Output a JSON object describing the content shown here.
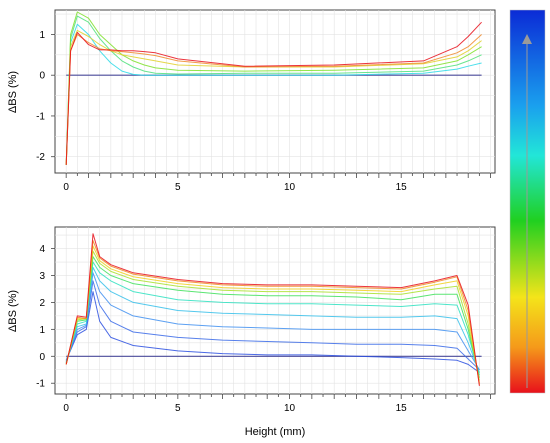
{
  "colors": {
    "colorbar_top": "#0b2bd6",
    "colorbar_bottom": "#e8101b",
    "baseline": "#4a4a9a"
  },
  "chart_data": [
    {
      "type": "line",
      "ylabel": "ΔBS (%)",
      "xlabel": "",
      "xlim": [
        -0.5,
        19.2
      ],
      "ylim": [
        -2.4,
        1.6
      ],
      "xticks": [
        0,
        5,
        10,
        15
      ],
      "yticks": [
        1,
        0,
        -1,
        -2
      ],
      "grid": true,
      "legend": "none",
      "series": [
        {
          "color": "#0000cd",
          "x": [
            0,
            18.6
          ],
          "y": [
            0,
            0
          ]
        },
        {
          "color": "#2bd9e8",
          "x": [
            0,
            0.2,
            0.5,
            1.0,
            1.5,
            2.0,
            2.5,
            3.0,
            3.5,
            4.0,
            5.0,
            8.0,
            12.0,
            16.0,
            17.5,
            18.0,
            18.6
          ],
          "y": [
            -2.2,
            0.8,
            1.25,
            1.0,
            0.6,
            0.3,
            0.1,
            0.02,
            0.0,
            0.0,
            0.0,
            0.0,
            0.0,
            0.05,
            0.15,
            0.22,
            0.3
          ]
        },
        {
          "color": "#4fe07a",
          "x": [
            0,
            0.2,
            0.5,
            1.0,
            1.5,
            2.0,
            2.5,
            3.0,
            3.5,
            4.0,
            5.0,
            8.0,
            12.0,
            16.0,
            17.5,
            18.0,
            18.6
          ],
          "y": [
            -2.2,
            0.9,
            1.45,
            1.3,
            0.9,
            0.6,
            0.35,
            0.2,
            0.1,
            0.05,
            0.03,
            0.05,
            0.05,
            0.1,
            0.25,
            0.35,
            0.5
          ]
        },
        {
          "color": "#7fe02a",
          "x": [
            0,
            0.2,
            0.5,
            1.0,
            1.5,
            2.0,
            2.5,
            3.0,
            3.5,
            4.0,
            5.0,
            8.0,
            12.0,
            16.0,
            17.5,
            18.0,
            18.6
          ],
          "y": [
            -2.2,
            1.0,
            1.55,
            1.4,
            1.0,
            0.75,
            0.5,
            0.35,
            0.25,
            0.18,
            0.12,
            0.1,
            0.12,
            0.18,
            0.35,
            0.5,
            0.7
          ]
        },
        {
          "color": "#e0d02a",
          "x": [
            0,
            0.2,
            0.5,
            1.0,
            1.5,
            2.0,
            2.5,
            3.0,
            3.5,
            4.0,
            5.0,
            8.0,
            12.0,
            16.0,
            17.5,
            18.0,
            18.6
          ],
          "y": [
            -2.2,
            0.7,
            1.1,
            0.95,
            0.75,
            0.6,
            0.5,
            0.45,
            0.4,
            0.35,
            0.25,
            0.2,
            0.2,
            0.28,
            0.45,
            0.6,
            0.85
          ]
        },
        {
          "color": "#f08a2a",
          "x": [
            0,
            0.2,
            0.5,
            1.0,
            1.5,
            2.0,
            2.5,
            3.0,
            3.5,
            4.0,
            5.0,
            8.0,
            12.0,
            16.0,
            17.5,
            18.0,
            18.6
          ],
          "y": [
            -2.2,
            0.6,
            1.0,
            0.8,
            0.65,
            0.6,
            0.58,
            0.55,
            0.52,
            0.48,
            0.35,
            0.2,
            0.22,
            0.3,
            0.55,
            0.7,
            1.0
          ]
        },
        {
          "color": "#e8101b",
          "x": [
            0,
            0.2,
            0.5,
            1.0,
            1.5,
            2.0,
            2.5,
            3.0,
            3.5,
            4.0,
            5.0,
            8.0,
            12.0,
            16.0,
            17.5,
            18.0,
            18.6
          ],
          "y": [
            -2.2,
            0.6,
            1.05,
            0.75,
            0.62,
            0.62,
            0.6,
            0.6,
            0.58,
            0.55,
            0.4,
            0.22,
            0.25,
            0.35,
            0.7,
            0.95,
            1.3
          ]
        }
      ]
    },
    {
      "type": "line",
      "ylabel": "ΔBS (%)",
      "xlabel": "Height (mm)",
      "xlim": [
        -0.5,
        19.2
      ],
      "ylim": [
        -1.4,
        4.8
      ],
      "xticks": [
        0,
        5,
        10,
        15
      ],
      "yticks": [
        4,
        3,
        2,
        1,
        0,
        -1
      ],
      "grid": true,
      "legend": "none",
      "series": [
        {
          "color": "#0000cd",
          "x": [
            0,
            18.6
          ],
          "y": [
            0,
            0
          ]
        },
        {
          "color": "#2a4fe0",
          "x": [
            0,
            0.5,
            0.9,
            1.2,
            1.5,
            2.0,
            3.0,
            5.0,
            7.0,
            9.0,
            11.0,
            13.0,
            15.0,
            16.5,
            17.5,
            18.0,
            18.5
          ],
          "y": [
            -0.15,
            0.8,
            1.0,
            2.4,
            1.3,
            0.7,
            0.4,
            0.2,
            0.1,
            0.05,
            0.05,
            0.0,
            -0.05,
            -0.1,
            -0.15,
            -0.3,
            -0.6
          ]
        },
        {
          "color": "#3a6ae8",
          "x": [
            0,
            0.5,
            0.9,
            1.2,
            1.5,
            2.0,
            3.0,
            5.0,
            7.0,
            9.0,
            11.0,
            13.0,
            15.0,
            16.5,
            17.5,
            18.0,
            18.5
          ],
          "y": [
            -0.15,
            0.9,
            1.1,
            2.8,
            1.9,
            1.3,
            0.9,
            0.7,
            0.6,
            0.55,
            0.5,
            0.45,
            0.45,
            0.4,
            0.3,
            -0.1,
            -0.5
          ]
        },
        {
          "color": "#3f8ff0",
          "x": [
            0,
            0.5,
            0.9,
            1.2,
            1.5,
            2.0,
            3.0,
            5.0,
            7.0,
            9.0,
            11.0,
            13.0,
            15.0,
            16.5,
            17.5,
            18.0,
            18.5
          ],
          "y": [
            -0.2,
            1.0,
            1.15,
            3.1,
            2.4,
            1.9,
            1.5,
            1.2,
            1.1,
            1.05,
            1.0,
            1.0,
            1.0,
            1.0,
            0.9,
            0.2,
            -0.5
          ]
        },
        {
          "color": "#36c0ea",
          "x": [
            0,
            0.5,
            0.9,
            1.2,
            1.5,
            2.0,
            3.0,
            5.0,
            7.0,
            9.0,
            11.0,
            13.0,
            15.0,
            16.5,
            17.5,
            18.0,
            18.5
          ],
          "y": [
            -0.2,
            1.1,
            1.2,
            3.3,
            2.8,
            2.4,
            2.0,
            1.7,
            1.6,
            1.55,
            1.5,
            1.45,
            1.45,
            1.5,
            1.4,
            0.5,
            -0.6
          ]
        },
        {
          "color": "#2ee0c0",
          "x": [
            0,
            0.5,
            0.9,
            1.2,
            1.5,
            2.0,
            3.0,
            5.0,
            7.0,
            9.0,
            11.0,
            13.0,
            15.0,
            16.5,
            17.5,
            18.0,
            18.5
          ],
          "y": [
            -0.25,
            1.2,
            1.3,
            3.5,
            3.1,
            2.8,
            2.4,
            2.1,
            2.0,
            1.95,
            1.95,
            1.9,
            1.85,
            1.95,
            1.9,
            0.8,
            -0.7
          ]
        },
        {
          "color": "#3ee05a",
          "x": [
            0,
            0.5,
            0.9,
            1.2,
            1.5,
            2.0,
            3.0,
            5.0,
            7.0,
            9.0,
            11.0,
            13.0,
            15.0,
            16.5,
            17.5,
            18.0,
            18.5
          ],
          "y": [
            -0.25,
            1.3,
            1.35,
            3.7,
            3.3,
            3.0,
            2.7,
            2.45,
            2.3,
            2.25,
            2.25,
            2.2,
            2.1,
            2.3,
            2.3,
            1.0,
            -0.8
          ]
        },
        {
          "color": "#a8e02a",
          "x": [
            0,
            0.5,
            0.9,
            1.2,
            1.5,
            2.0,
            3.0,
            5.0,
            7.0,
            9.0,
            11.0,
            13.0,
            15.0,
            16.5,
            17.5,
            18.0,
            18.5
          ],
          "y": [
            -0.3,
            1.35,
            1.4,
            3.9,
            3.45,
            3.15,
            2.85,
            2.6,
            2.45,
            2.4,
            2.4,
            2.35,
            2.3,
            2.5,
            2.6,
            1.2,
            -0.9
          ]
        },
        {
          "color": "#f0d020",
          "x": [
            0,
            0.5,
            0.9,
            1.2,
            1.5,
            2.0,
            3.0,
            5.0,
            7.0,
            9.0,
            11.0,
            13.0,
            15.0,
            16.5,
            17.5,
            18.0,
            18.5
          ],
          "y": [
            -0.3,
            1.4,
            1.4,
            4.1,
            3.55,
            3.25,
            2.95,
            2.7,
            2.55,
            2.5,
            2.5,
            2.45,
            2.4,
            2.65,
            2.8,
            1.5,
            -1.0
          ]
        },
        {
          "color": "#f08a20",
          "x": [
            0,
            0.5,
            0.9,
            1.2,
            1.5,
            2.0,
            3.0,
            5.0,
            7.0,
            9.0,
            11.0,
            13.0,
            15.0,
            16.5,
            17.5,
            18.0,
            18.5
          ],
          "y": [
            -0.3,
            1.45,
            1.4,
            4.3,
            3.65,
            3.35,
            3.05,
            2.8,
            2.65,
            2.6,
            2.6,
            2.55,
            2.5,
            2.75,
            2.95,
            1.7,
            -1.05
          ]
        },
        {
          "color": "#e8101b",
          "x": [
            0,
            0.5,
            0.9,
            1.2,
            1.5,
            2.0,
            3.0,
            5.0,
            7.0,
            9.0,
            11.0,
            13.0,
            15.0,
            16.5,
            17.5,
            18.0,
            18.5
          ],
          "y": [
            -0.3,
            1.5,
            1.45,
            4.55,
            3.7,
            3.4,
            3.1,
            2.85,
            2.7,
            2.65,
            2.65,
            2.6,
            2.55,
            2.8,
            3.0,
            1.9,
            -1.1
          ]
        }
      ]
    }
  ]
}
